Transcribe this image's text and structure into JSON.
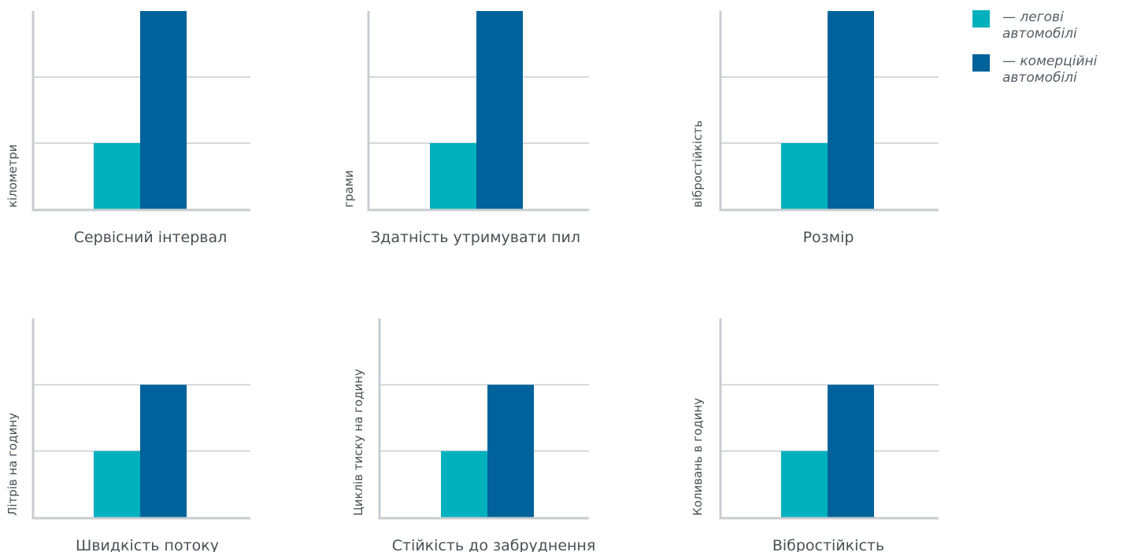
{
  "colors": {
    "light": "#00b1bd",
    "dark": "#00629a",
    "axis": "#c8ccd0",
    "text": "#4a4f55"
  },
  "legend": [
    {
      "label": "— легові автомобілі",
      "color": "#00b1bd"
    },
    {
      "label": "— комерційні автомобілі",
      "color": "#00629a"
    }
  ],
  "chart_data": [
    {
      "type": "bar",
      "title": "Сервісний інтервал",
      "ylabel": "кілометри",
      "categories": [
        ""
      ],
      "ylim": [
        0,
        3
      ],
      "grid": true,
      "series": [
        {
          "name": "— легові автомобілі",
          "values": [
            1
          ]
        },
        {
          "name": "— комерційні автомобілі",
          "values": [
            3
          ]
        }
      ]
    },
    {
      "type": "bar",
      "title": "Здатність утримувати пил",
      "ylabel": "грами",
      "categories": [
        ""
      ],
      "ylim": [
        0,
        3
      ],
      "grid": true,
      "series": [
        {
          "name": "— легові автомобілі",
          "values": [
            1
          ]
        },
        {
          "name": "— комерційні автомобілі",
          "values": [
            3
          ]
        }
      ]
    },
    {
      "type": "bar",
      "title": "Розмір",
      "ylabel": "вібростійкість",
      "categories": [
        ""
      ],
      "ylim": [
        0,
        3
      ],
      "grid": true,
      "series": [
        {
          "name": "— легові автомобілі",
          "values": [
            1
          ]
        },
        {
          "name": "— комерційні автомобілі",
          "values": [
            3
          ]
        }
      ]
    },
    {
      "type": "bar",
      "title": "Швидкість потоку",
      "ylabel": "Літрів на годину",
      "categories": [
        ""
      ],
      "ylim": [
        0,
        3
      ],
      "grid": true,
      "series": [
        {
          "name": "— легові автомобілі",
          "values": [
            1
          ]
        },
        {
          "name": "— комерційні автомобілі",
          "values": [
            2
          ]
        }
      ]
    },
    {
      "type": "bar",
      "title": "Стійкість до забруднення",
      "ylabel": "Циклів тиску на годину",
      "categories": [
        ""
      ],
      "ylim": [
        0,
        3
      ],
      "grid": true,
      "series": [
        {
          "name": "— легові автомобілі",
          "values": [
            1
          ]
        },
        {
          "name": "— комерційні автомобілі",
          "values": [
            2
          ]
        }
      ]
    },
    {
      "type": "bar",
      "title": "Вібростійкість",
      "ylabel": "Коливань в годину",
      "categories": [
        ""
      ],
      "ylim": [
        0,
        3
      ],
      "grid": true,
      "series": [
        {
          "name": "— легові автомобілі",
          "values": [
            1
          ]
        },
        {
          "name": "— комерційні автомобілі",
          "values": [
            2
          ]
        }
      ]
    }
  ]
}
